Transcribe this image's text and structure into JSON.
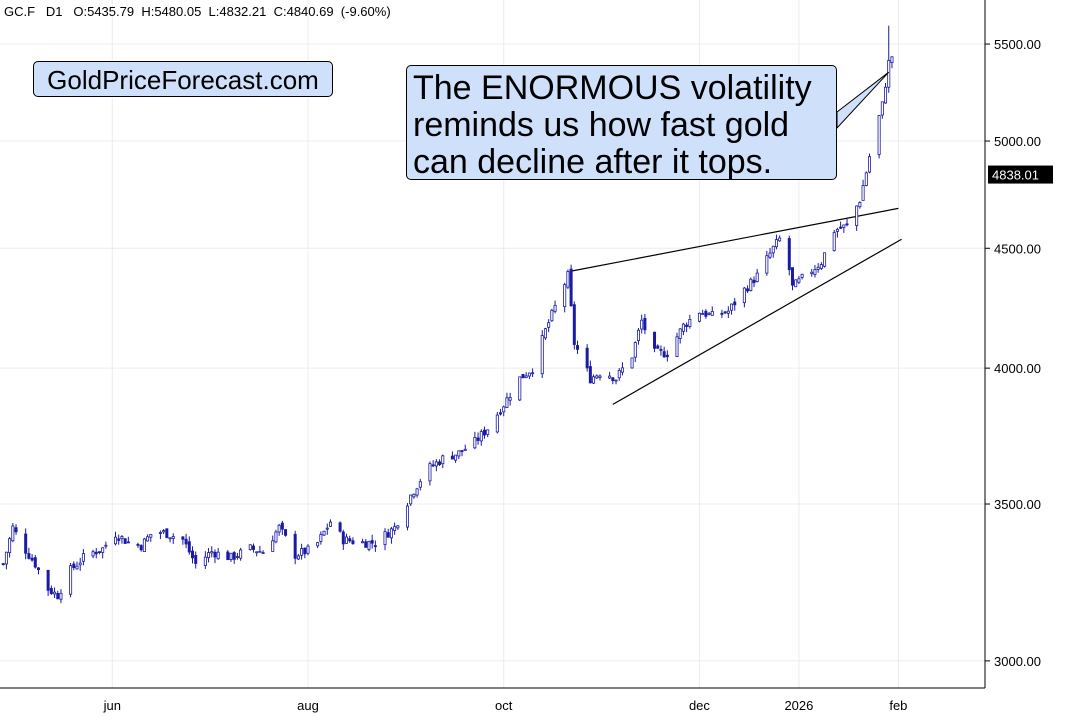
{
  "header": {
    "symbol": "GC.F",
    "timeframe": "D1",
    "ohlc_text": "O:5435.79  H:5480.05  L:4832.21  C:4840.69  (-9.60%)"
  },
  "logo_text": "GoldPriceForecast.com",
  "annotation": {
    "lines": [
      "The ENORMOUS volatility",
      "reminds us how fast gold",
      "can decline after it tops."
    ]
  },
  "colors": {
    "candle": "#1a1aa6",
    "box_fill": "#cfe0fb",
    "grid": "#ececec",
    "last_price_bg": "#000000",
    "last_price_fg": "#ffffff"
  },
  "chart_data": {
    "type": "candlestick",
    "y_scale": "log",
    "ylim": [
      2950,
      5800
    ],
    "y_ticks": [
      3000,
      3500,
      4000,
      4500,
      5000,
      5500
    ],
    "y_tick_labels": [
      "3000.00",
      "3500.00",
      "4000.00",
      "4500.00",
      "5000.00",
      "5500.00"
    ],
    "x_ticks": [
      "2025-06-01",
      "2025-08-01",
      "2025-10-01",
      "2025-12-01",
      "2026-01-01",
      "2026-02-01"
    ],
    "x_tick_labels": [
      "jun",
      "aug",
      "oct",
      "dec",
      "2026",
      "feb"
    ],
    "xlim": [
      "2025-04-27",
      "2026-02-28"
    ],
    "grid": true,
    "last_price": 4838.01,
    "last_price_label": "4838.01",
    "close_anchors": [
      [
        "2025-04-28",
        3300
      ],
      [
        "2025-05-01",
        3420
      ],
      [
        "2025-05-04",
        3360
      ],
      [
        "2025-05-08",
        3300
      ],
      [
        "2025-05-12",
        3220
      ],
      [
        "2025-05-15",
        3200
      ],
      [
        "2025-05-19",
        3280
      ],
      [
        "2025-05-24",
        3330
      ],
      [
        "2025-05-29",
        3350
      ],
      [
        "2025-06-02",
        3400
      ],
      [
        "2025-06-06",
        3370
      ],
      [
        "2025-06-10",
        3360
      ],
      [
        "2025-06-14",
        3410
      ],
      [
        "2025-06-18",
        3400
      ],
      [
        "2025-06-23",
        3380
      ],
      [
        "2025-06-27",
        3300
      ],
      [
        "2025-07-02",
        3340
      ],
      [
        "2025-07-08",
        3320
      ],
      [
        "2025-07-14",
        3350
      ],
      [
        "2025-07-18",
        3340
      ],
      [
        "2025-07-23",
        3420
      ],
      [
        "2025-07-28",
        3330
      ],
      [
        "2025-08-03",
        3350
      ],
      [
        "2025-08-08",
        3440
      ],
      [
        "2025-08-12",
        3380
      ],
      [
        "2025-08-18",
        3370
      ],
      [
        "2025-08-22",
        3370
      ],
      [
        "2025-08-28",
        3420
      ],
      [
        "2025-09-02",
        3530
      ],
      [
        "2025-09-07",
        3620
      ],
      [
        "2025-09-12",
        3660
      ],
      [
        "2025-09-17",
        3680
      ],
      [
        "2025-09-22",
        3720
      ],
      [
        "2025-09-26",
        3770
      ],
      [
        "2025-10-01",
        3860
      ],
      [
        "2025-10-06",
        3960
      ],
      [
        "2025-10-10",
        4000
      ],
      [
        "2025-10-14",
        4150
      ],
      [
        "2025-10-18",
        4280
      ],
      [
        "2025-10-21",
        4380
      ],
      [
        "2025-10-23",
        4100
      ],
      [
        "2025-10-28",
        3960
      ],
      [
        "2025-11-01",
        3990
      ],
      [
        "2025-11-05",
        3960
      ],
      [
        "2025-11-10",
        4050
      ],
      [
        "2025-11-13",
        4190
      ],
      [
        "2025-11-17",
        4060
      ],
      [
        "2025-11-21",
        4060
      ],
      [
        "2025-11-26",
        4170
      ],
      [
        "2025-12-01",
        4230
      ],
      [
        "2025-12-05",
        4210
      ],
      [
        "2025-12-10",
        4230
      ],
      [
        "2025-12-15",
        4320
      ],
      [
        "2025-12-19",
        4380
      ],
      [
        "2025-12-24",
        4500
      ],
      [
        "2025-12-27",
        4560
      ],
      [
        "2025-12-30",
        4330
      ],
      [
        "2026-01-03",
        4380
      ],
      [
        "2026-01-08",
        4440
      ],
      [
        "2026-01-12",
        4580
      ],
      [
        "2026-01-16",
        4600
      ],
      [
        "2026-01-20",
        4720
      ],
      [
        "2026-01-22",
        4850
      ],
      [
        "2026-01-24",
        5000
      ],
      [
        "2026-01-27",
        5180
      ],
      [
        "2026-01-29",
        5400
      ],
      [
        "2026-01-30",
        5435
      ],
      [
        "2026-01-31",
        4840
      ]
    ],
    "trendlines": [
      {
        "from": [
          "2025-10-22",
          4400
        ],
        "to": [
          "2026-02-01",
          4680
        ]
      },
      {
        "from": [
          "2025-11-04",
          3860
        ],
        "to": [
          "2026-02-02",
          4540
        ]
      }
    ],
    "annotation_pointer": {
      "from_box": true,
      "to": [
        "2026-01-29",
        5350
      ]
    }
  }
}
